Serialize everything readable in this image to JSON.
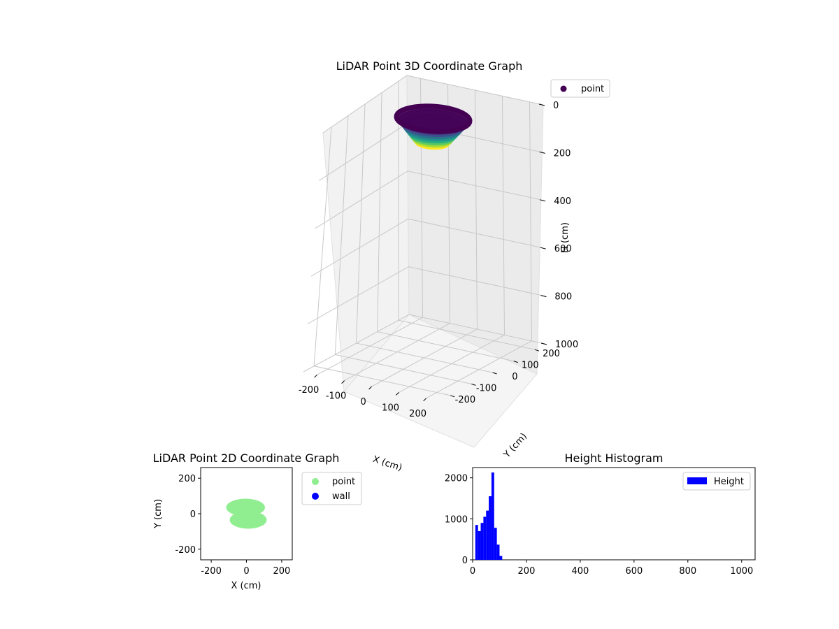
{
  "figure": {
    "charts": [
      "3d",
      "scatter2d",
      "histogram"
    ]
  },
  "chart_data": [
    {
      "type": "scatter3d",
      "title": "LiDAR Point 3D Coordinate Graph",
      "xlabel": "X (cm)",
      "ylabel": "Y (cm)",
      "zlabel": "H (cm)",
      "xticks": [
        -200,
        -100,
        0,
        100,
        200
      ],
      "yticks": [
        -200,
        -100,
        0,
        100,
        200
      ],
      "zticks": [
        0,
        200,
        400,
        600,
        800,
        1000
      ],
      "xlim": [
        -250,
        250
      ],
      "ylim": [
        -250,
        250
      ],
      "zlim": [
        0,
        1000
      ],
      "zinverted": true,
      "colormap": "viridis",
      "legend": [
        {
          "label": "point",
          "color": "#440154"
        }
      ],
      "cloud": {
        "x_range": [
          -120,
          120
        ],
        "y_range": [
          -90,
          90
        ],
        "h_range": [
          0,
          100
        ]
      }
    },
    {
      "type": "scatter",
      "title": "LiDAR Point 2D Coordinate Graph",
      "xlabel": "X (cm)",
      "ylabel": "Y (cm)",
      "xticks": [
        -200,
        0,
        200
      ],
      "yticks": [
        -200,
        0,
        200
      ],
      "xlim": [
        -260,
        260
      ],
      "ylim": [
        -260,
        260
      ],
      "series": [
        {
          "name": "point",
          "color": "#90ee90",
          "regions": [
            {
              "cx": -5,
              "cy": 35,
              "rx": 110,
              "ry": 45
            },
            {
              "cx": 10,
              "cy": -35,
              "rx": 105,
              "ry": 45
            }
          ]
        },
        {
          "name": "wall",
          "color": "#0000ff",
          "regions": []
        }
      ]
    },
    {
      "type": "histogram",
      "title": "Height Histogram",
      "xlabel": "",
      "ylabel": "",
      "xticks": [
        0,
        200,
        400,
        600,
        800,
        1000
      ],
      "yticks": [
        0,
        1000,
        2000
      ],
      "xlim": [
        0,
        1050
      ],
      "ylim": [
        0,
        2250
      ],
      "legend": [
        {
          "label": "Height",
          "color": "#0000ff"
        }
      ],
      "bar_color": "#0000ff",
      "bins": [
        {
          "x0": 10,
          "x1": 20,
          "count": 850
        },
        {
          "x0": 20,
          "x1": 30,
          "count": 700
        },
        {
          "x0": 30,
          "x1": 40,
          "count": 900
        },
        {
          "x0": 40,
          "x1": 50,
          "count": 1050
        },
        {
          "x0": 50,
          "x1": 60,
          "count": 1200
        },
        {
          "x0": 60,
          "x1": 70,
          "count": 1550
        },
        {
          "x0": 70,
          "x1": 80,
          "count": 2130
        },
        {
          "x0": 80,
          "x1": 90,
          "count": 780
        },
        {
          "x0": 90,
          "x1": 100,
          "count": 370
        },
        {
          "x0": 100,
          "x1": 110,
          "count": 95
        }
      ]
    }
  ]
}
